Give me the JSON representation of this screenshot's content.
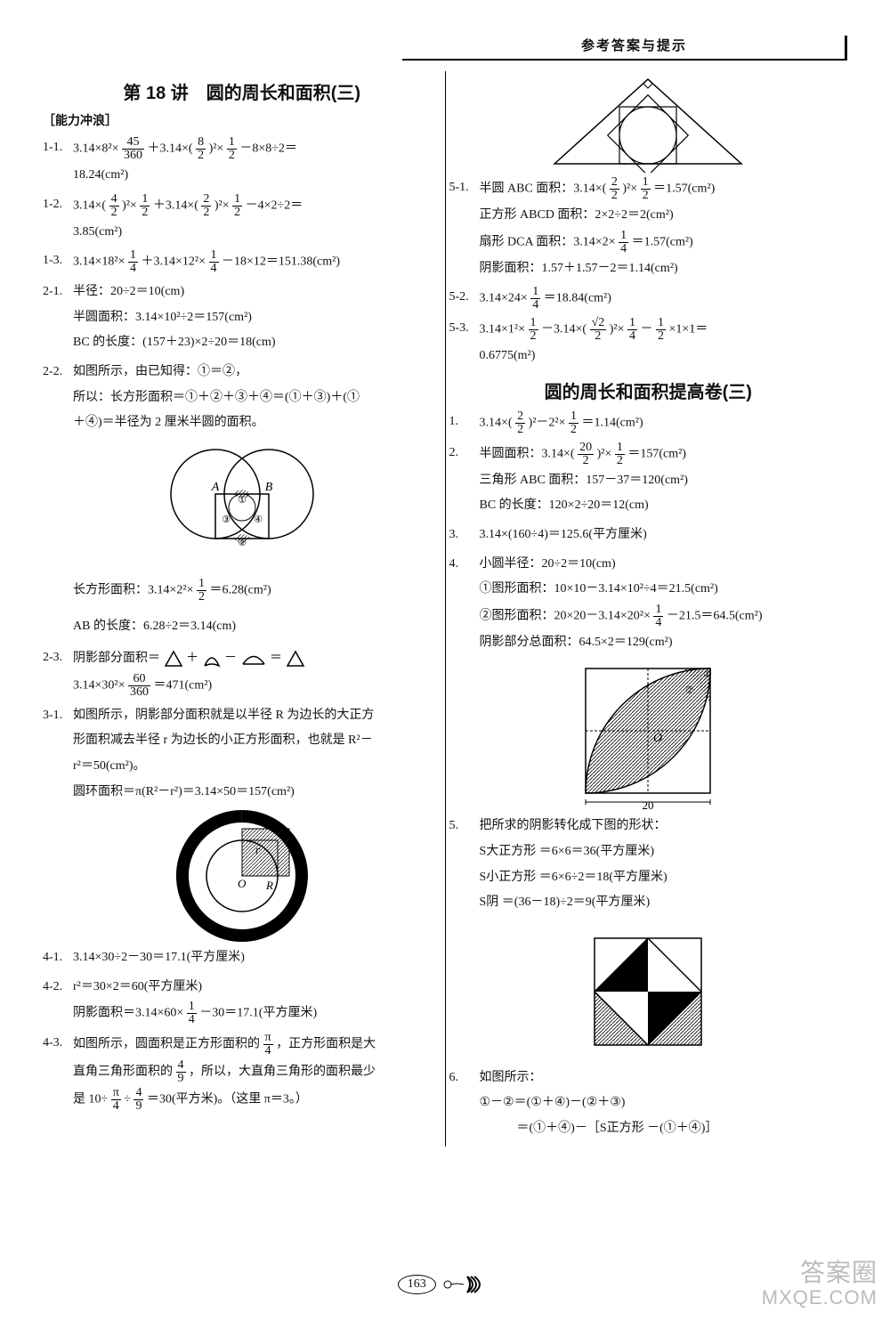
{
  "header": {
    "title": "参考答案与提示"
  },
  "left": {
    "title": "第 18 讲　圆的周长和面积(三)",
    "subhead": "［能力冲浪］",
    "i1_1": {
      "n": "1-1.",
      "l1": "3.14×8²× 45/360 ＋3.14×( 8/2 )²× 1/2 －8×8÷2＝",
      "l2": "18.24(cm²)"
    },
    "i1_2": {
      "n": "1-2.",
      "l1": "3.14×( 4/2 )²× 1/2 ＋3.14×( 2/2 )²× 1/2 －4×2÷2＝",
      "l2": "3.85(cm²)"
    },
    "i1_3": {
      "n": "1-3.",
      "l1": "3.14×18²× 1/4 ＋3.14×12²× 1/4 －18×12＝151.38(cm²)"
    },
    "i2_1": {
      "n": "2-1.",
      "l1": "半径：20÷2＝10(cm)",
      "l2": "半圆面积：3.14×10²÷2＝157(cm²)",
      "l3": "BC 的长度：(157＋23)×2÷20＝18(cm)"
    },
    "i2_2": {
      "n": "2-2.",
      "l1": "如图所示，由已知得：①＝②，",
      "l2": "所以：长方形面积＝①＋②＋③＋④＝(①＋③)＋(①",
      "l3": "＋④)＝半径为 2 厘米半圆的面积。",
      "l4": "长方形面积：3.14×2²× 1/2 ＝6.28(cm²)",
      "l5": "AB 的长度：6.28÷2＝3.14(cm)"
    },
    "i2_3": {
      "n": "2-3.",
      "l1": "阴影部分面积＝",
      "l2": "3.14×30²× 60/360 ＝471(cm²)"
    },
    "i3_1": {
      "n": "3-1.",
      "l1": "如图所示，阴影部分面积就是以半径 R 为边长的大正方",
      "l2": "形面积减去半径 r 为边长的小正方形面积，也就是 R²－",
      "l3": "r²＝50(cm²)。",
      "l4": "圆环面积＝π(R²－r²)＝3.14×50＝157(cm²)"
    },
    "i4_1": {
      "n": "4-1.",
      "l1": "3.14×30÷2－30＝17.1(平方厘米)"
    },
    "i4_2": {
      "n": "4-2.",
      "l1": "r²＝30×2＝60(平方厘米)",
      "l2": "阴影面积＝3.14×60× 1/4 －30＝17.1(平方厘米)"
    },
    "i4_3": {
      "n": "4-3.",
      "l1": "如图所示，圆面积是正方形面积的 π/4 ，正方形面积是大",
      "l2": "直角三角形面积的 4/9 ，所以，大直角三角形的面积最少",
      "l3": "是 10÷ π/4 ÷ 4/9 ＝30(平方米)。（这里 π＝3。）"
    }
  },
  "right": {
    "i5_1": {
      "n": "5-1.",
      "l1": "半圆 ABC 面积：3.14×( 2/2 )²× 1/2 ＝1.57(cm²)",
      "l2": "正方形 ABCD 面积：2×2÷2＝2(cm²)",
      "l3": "扇形 DCA 面积：3.14×2× 1/4 ＝1.57(cm²)",
      "l4": "阴影面积：1.57＋1.57－2＝1.14(cm²)"
    },
    "i5_2": {
      "n": "5-2.",
      "l1": "3.14×24× 1/4 ＝18.84(cm²)"
    },
    "i5_3": {
      "n": "5-3.",
      "l1": "3.14×1²× 1/2 －3.14×( √2/2 )²× 1/4 － 1/2 ×1×1＝",
      "l2": "0.6775(m²)"
    },
    "title2": "圆的周长和面积提高卷(三)",
    "q1": {
      "n": "1.",
      "l1": "3.14×( 2/2 )²－2²× 1/2 ＝1.14(cm²)"
    },
    "q2": {
      "n": "2.",
      "l1": "半圆面积：3.14×( 20/2 )²× 1/2 ＝157(cm²)",
      "l2": "三角形 ABC 面积：157－37＝120(cm²)",
      "l3": "BC 的长度：120×2÷20＝12(cm)"
    },
    "q3": {
      "n": "3.",
      "l1": "3.14×(160÷4)＝125.6(平方厘米)"
    },
    "q4": {
      "n": "4.",
      "l1": "小圆半径：20÷2＝10(cm)",
      "l2": "①图形面积：10×10－3.14×10²÷4＝21.5(cm²)",
      "l3": "②图形面积：20×20－3.14×20²× 1/4 －21.5＝64.5(cm²)",
      "l4": "阴影部分总面积：64.5×2＝129(cm²)"
    },
    "q5": {
      "n": "5.",
      "l1": "把所求的阴影转化成下图的形状：",
      "l2": "S大正方形 ＝6×6＝36(平方厘米)",
      "l3": "S小正方形 ＝6×6÷2＝18(平方厘米)",
      "l4": "S阴 ＝(36－18)÷2＝9(平方厘米)"
    },
    "q6": {
      "n": "6.",
      "l1": "如图所示：",
      "l2": "①－②＝(①＋④)－(②＋③)",
      "l3": "　　　＝(①＋④)－［S正方形 －(①＋④)］"
    }
  },
  "pagenum": "163",
  "labels": {
    "A": "A",
    "B": "B",
    "O": "O",
    "R": "R",
    "r": "r",
    "n1": "①",
    "n2": "②",
    "n3": "③",
    "n4": "④",
    "twenty": "20"
  },
  "watermark": {
    "cn": "答案圈",
    "en": "MXQE.COM"
  }
}
